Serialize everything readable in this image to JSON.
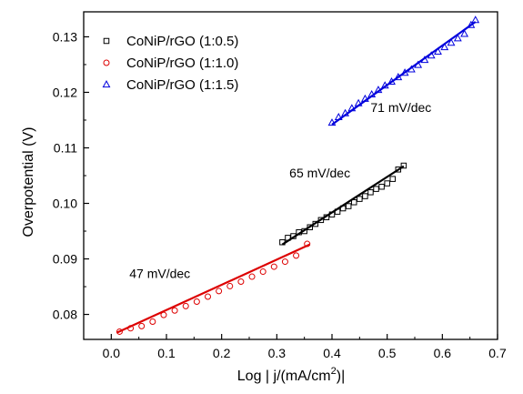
{
  "chart_data": {
    "type": "scatter",
    "title": "",
    "xlabel": {
      "prefix": "Log | j/(mA/cm",
      "sup": "2",
      "suffix": ")|"
    },
    "ylabel": "Overpotential (V)",
    "xlim": [
      -0.05,
      0.7
    ],
    "ylim": [
      0.0755,
      0.1345
    ],
    "xticks": [
      0.0,
      0.1,
      0.2,
      0.3,
      0.4,
      0.5,
      0.6,
      0.7
    ],
    "yticks": [
      0.08,
      0.09,
      0.1,
      0.11,
      0.12,
      0.13
    ],
    "xtick_labels": [
      "0.0",
      "0.1",
      "0.2",
      "0.3",
      "0.4",
      "0.5",
      "0.6",
      "0.7"
    ],
    "ytick_labels": [
      "0.08",
      "0.09",
      "0.10",
      "0.11",
      "0.12",
      "0.13"
    ],
    "legend_position": "top-left",
    "grid": false,
    "series": [
      {
        "name": "CoNiP/rGO (1:0.5)",
        "marker": "square",
        "color": "#000000",
        "x": [
          0.31,
          0.32,
          0.33,
          0.34,
          0.35,
          0.36,
          0.37,
          0.38,
          0.39,
          0.4,
          0.41,
          0.42,
          0.43,
          0.44,
          0.45,
          0.46,
          0.47,
          0.48,
          0.49,
          0.5,
          0.51,
          0.52,
          0.53
        ],
        "y": [
          0.093,
          0.0938,
          0.0941,
          0.0948,
          0.095,
          0.0957,
          0.0963,
          0.097,
          0.0975,
          0.098,
          0.0985,
          0.0991,
          0.0995,
          0.1002,
          0.1008,
          0.1013,
          0.102,
          0.1026,
          0.103,
          0.1036,
          0.1044,
          0.1061,
          0.1068
        ],
        "fit": {
          "x": [
            0.31,
            0.53
          ],
          "y": [
            0.0926,
            0.1067
          ]
        }
      },
      {
        "name": "CoNiP/rGO (1:1.0)",
        "marker": "circle",
        "color": "#dd0000",
        "x": [
          0.015,
          0.035,
          0.055,
          0.075,
          0.095,
          0.115,
          0.135,
          0.155,
          0.175,
          0.195,
          0.215,
          0.235,
          0.255,
          0.275,
          0.295,
          0.315,
          0.335,
          0.355
        ],
        "y": [
          0.0769,
          0.0775,
          0.0779,
          0.0787,
          0.0799,
          0.0807,
          0.0815,
          0.0823,
          0.0832,
          0.0842,
          0.0851,
          0.0859,
          0.0868,
          0.0877,
          0.0886,
          0.0895,
          0.0906,
          0.0927
        ],
        "fit": {
          "x": [
            0.01,
            0.36
          ],
          "y": [
            0.0767,
            0.0926
          ]
        }
      },
      {
        "name": "CoNiP/rGO (1:1.5)",
        "marker": "triangle",
        "color": "#0000dd",
        "x": [
          0.4,
          0.412,
          0.424,
          0.436,
          0.448,
          0.46,
          0.472,
          0.484,
          0.496,
          0.508,
          0.52,
          0.532,
          0.544,
          0.556,
          0.568,
          0.58,
          0.592,
          0.604,
          0.616,
          0.628,
          0.64,
          0.652,
          0.66
        ],
        "y": [
          0.1145,
          0.1155,
          0.1162,
          0.1171,
          0.118,
          0.1188,
          0.1196,
          0.1204,
          0.1212,
          0.1219,
          0.1227,
          0.1235,
          0.1241,
          0.1249,
          0.1258,
          0.1266,
          0.1273,
          0.1281,
          0.1289,
          0.1297,
          0.1305,
          0.1321,
          0.133
        ],
        "fit": {
          "x": [
            0.4,
            0.66
          ],
          "y": [
            0.1142,
            0.1327
          ]
        }
      }
    ],
    "annotations": [
      {
        "text": "47 mV/dec",
        "x": 0.088,
        "y": 0.0866
      },
      {
        "text": "65 mV/dec",
        "x": 0.378,
        "y": 0.1047
      },
      {
        "text": "71 mV/dec",
        "x": 0.525,
        "y": 0.1165
      }
    ]
  }
}
